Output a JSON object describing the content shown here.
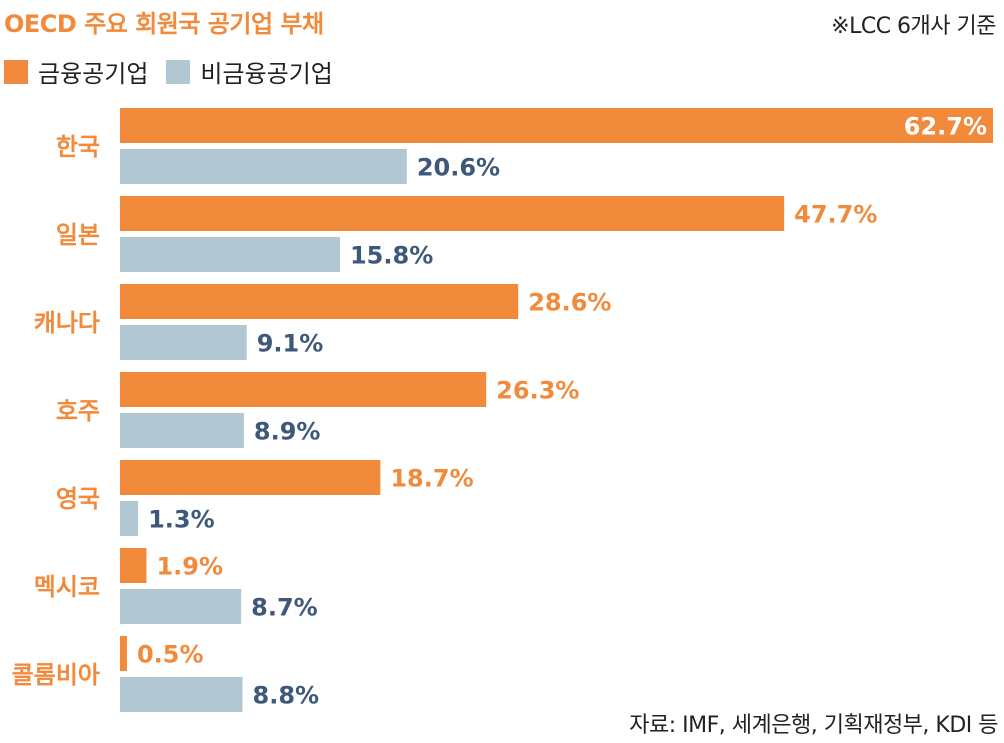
{
  "header": {
    "title": "OECD 주요 회원국 공기업 부채",
    "note": "※LCC 6개사 기준"
  },
  "footer": {
    "source": "자료: IMF, 세계은행, 기획재정부, KDI 등"
  },
  "colors": {
    "financial": "#f28a3c",
    "non_financial": "#b1c7d1",
    "category_label": "#f28a3c",
    "non_financial_value_text": "#3d5878",
    "inside_value_text": "#ffffff"
  },
  "chart_data": {
    "type": "bar",
    "orientation": "horizontal",
    "title": "OECD 주요 회원국 공기업 부채",
    "categories": [
      "한국",
      "일본",
      "캐나다",
      "호주",
      "영국",
      "멕시코",
      "콜롬비아"
    ],
    "series": [
      {
        "name": "금융공기업",
        "values": [
          62.7,
          47.7,
          28.6,
          26.3,
          18.7,
          1.9,
          0.5
        ]
      },
      {
        "name": "비금융공기업",
        "values": [
          20.6,
          15.8,
          9.1,
          8.9,
          1.3,
          8.7,
          8.8
        ]
      }
    ],
    "value_labels": [
      [
        "62.7%",
        "47.7%",
        "28.6%",
        "26.3%",
        "18.7%",
        "1.9%",
        "0.5%"
      ],
      [
        "20.6%",
        "15.8%",
        "9.1%",
        "8.9%",
        "1.3%",
        "8.7%",
        "8.8%"
      ]
    ],
    "unit": "%",
    "xlim": [
      0,
      62.7
    ],
    "legend": "top-left",
    "grid": false
  }
}
